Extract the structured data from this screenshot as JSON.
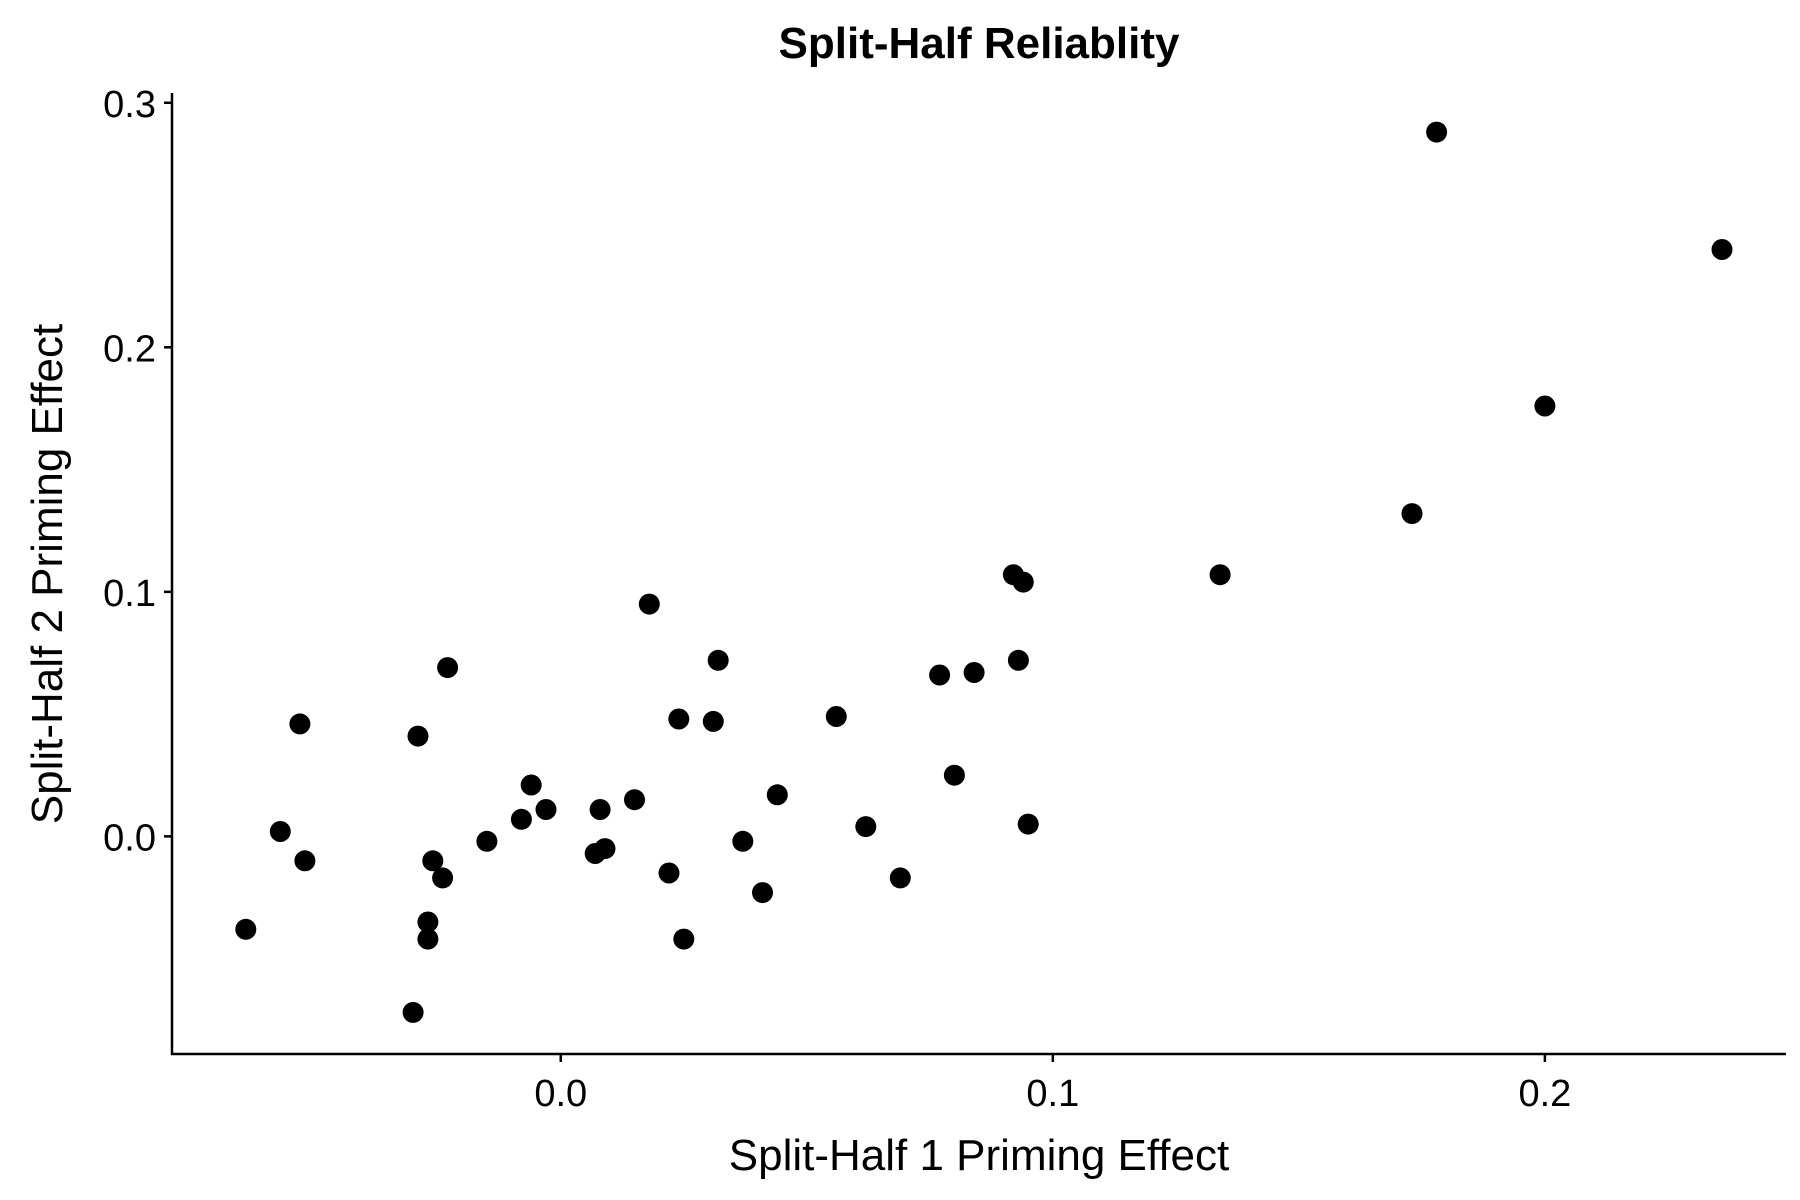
{
  "chart_data": {
    "type": "scatter",
    "title": "Split-Half Reliablity",
    "xlabel": "Split-Half 1 Priming Effect",
    "ylabel": "Split-Half 2 Priming Effect",
    "xlim": [
      -0.079,
      0.249
    ],
    "ylim": [
      -0.089,
      0.304
    ],
    "x_ticks": [
      0.0,
      0.1,
      0.2
    ],
    "y_ticks": [
      0.0,
      0.1,
      0.2,
      0.3
    ],
    "x_tick_labels": [
      "0.0",
      "0.1",
      "0.2"
    ],
    "y_tick_labels": [
      "0.0",
      "0.1",
      "0.2",
      "0.3"
    ],
    "grid": false,
    "legend": "none",
    "point_color": "#000000",
    "points": [
      {
        "x": -0.064,
        "y": -0.038
      },
      {
        "x": -0.057,
        "y": 0.002
      },
      {
        "x": -0.053,
        "y": 0.046
      },
      {
        "x": -0.052,
        "y": -0.01
      },
      {
        "x": -0.03,
        "y": -0.072
      },
      {
        "x": -0.029,
        "y": 0.041
      },
      {
        "x": -0.027,
        "y": -0.042
      },
      {
        "x": -0.027,
        "y": -0.035
      },
      {
        "x": -0.026,
        "y": -0.01
      },
      {
        "x": -0.024,
        "y": -0.017
      },
      {
        "x": -0.023,
        "y": 0.069
      },
      {
        "x": -0.015,
        "y": -0.002
      },
      {
        "x": -0.008,
        "y": 0.007
      },
      {
        "x": -0.006,
        "y": 0.021
      },
      {
        "x": -0.003,
        "y": 0.011
      },
      {
        "x": 0.007,
        "y": -0.007
      },
      {
        "x": 0.008,
        "y": 0.011
      },
      {
        "x": 0.009,
        "y": -0.005
      },
      {
        "x": 0.015,
        "y": 0.015
      },
      {
        "x": 0.018,
        "y": 0.095
      },
      {
        "x": 0.022,
        "y": -0.015
      },
      {
        "x": 0.024,
        "y": 0.048
      },
      {
        "x": 0.025,
        "y": -0.042
      },
      {
        "x": 0.031,
        "y": 0.047
      },
      {
        "x": 0.032,
        "y": 0.072
      },
      {
        "x": 0.037,
        "y": -0.002
      },
      {
        "x": 0.041,
        "y": -0.023
      },
      {
        "x": 0.044,
        "y": 0.017
      },
      {
        "x": 0.056,
        "y": 0.049
      },
      {
        "x": 0.062,
        "y": 0.004
      },
      {
        "x": 0.069,
        "y": -0.017
      },
      {
        "x": 0.077,
        "y": 0.066
      },
      {
        "x": 0.08,
        "y": 0.025
      },
      {
        "x": 0.084,
        "y": 0.067
      },
      {
        "x": 0.092,
        "y": 0.107
      },
      {
        "x": 0.093,
        "y": 0.072
      },
      {
        "x": 0.094,
        "y": 0.104
      },
      {
        "x": 0.095,
        "y": 0.005
      },
      {
        "x": 0.134,
        "y": 0.107
      },
      {
        "x": 0.173,
        "y": 0.132
      },
      {
        "x": 0.178,
        "y": 0.288
      },
      {
        "x": 0.2,
        "y": 0.176
      },
      {
        "x": 0.236,
        "y": 0.24
      }
    ]
  }
}
